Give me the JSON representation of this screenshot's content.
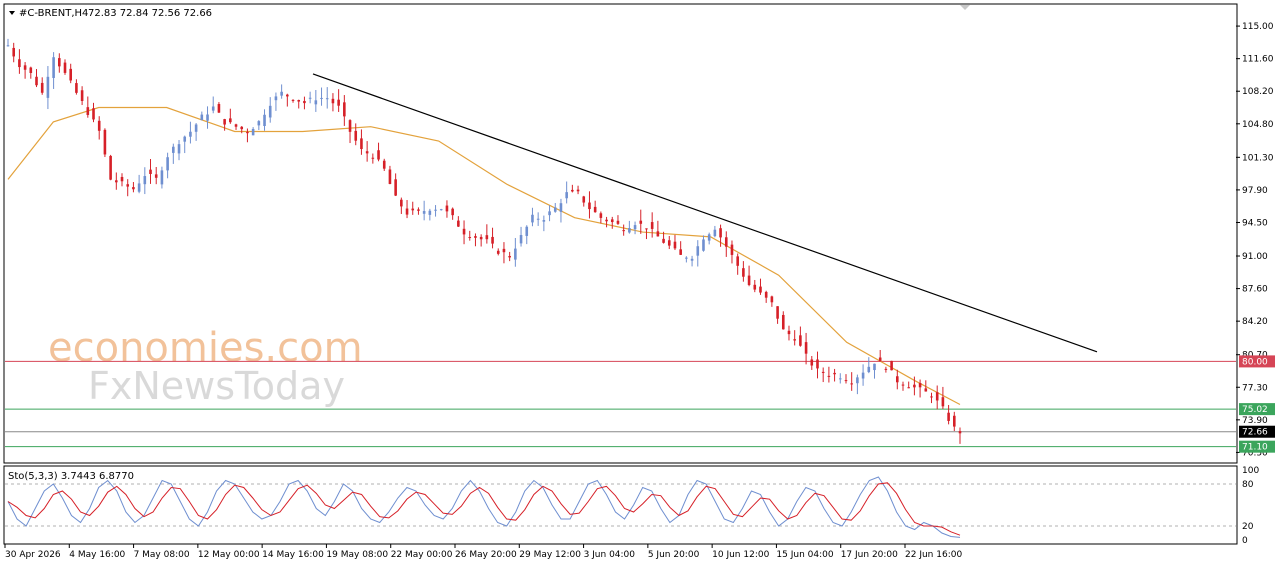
{
  "header": {
    "symbol_label": "#C-BRENT,H4",
    "ohlc_text": "72.83 72.84 72.56 72.66"
  },
  "watermark": {
    "line1": "economies.com",
    "line2": "FxNewsToday"
  },
  "chart_data": {
    "type": "candlestick",
    "symbol": "#C-BRENT",
    "timeframe": "H4",
    "last_bar": {
      "open": 72.83,
      "high": 72.84,
      "low": 72.56,
      "close": 72.66
    },
    "ylim": [
      69.5,
      117.2
    ],
    "y_ticks": [
      "115.00",
      "111.60",
      "108.20",
      "104.80",
      "101.30",
      "97.90",
      "94.50",
      "91.00",
      "87.60",
      "84.20",
      "80.70",
      "77.30",
      "73.90",
      "70.50"
    ],
    "x_ticks": [
      "30 Apr 2026",
      "4 May 16:00",
      "7 May 08:00",
      "12 May 00:00",
      "14 May 16:00",
      "19 May 08:00",
      "22 May 00:00",
      "26 May 20:00",
      "29 May 12:00",
      "3 Jun 04:00",
      "5 Jun 20:00",
      "10 Jun 12:00",
      "15 Jun 04:00",
      "17 Jun 20:00",
      "22 Jun 16:00"
    ],
    "bull_color": "#6f8fd0",
    "bear_color": "#d62028",
    "close_path": [
      [
        0,
        113
      ],
      [
        4,
        111
      ],
      [
        8,
        110
      ],
      [
        12,
        108
      ],
      [
        16,
        112
      ],
      [
        20,
        110
      ],
      [
        24,
        108
      ],
      [
        28,
        106
      ],
      [
        32,
        104
      ],
      [
        36,
        99
      ],
      [
        40,
        98.5
      ],
      [
        44,
        98
      ],
      [
        48,
        99.5
      ],
      [
        52,
        99
      ],
      [
        56,
        101.5
      ],
      [
        60,
        103
      ],
      [
        64,
        104
      ],
      [
        68,
        105.5
      ],
      [
        72,
        106.5
      ],
      [
        76,
        105
      ],
      [
        80,
        104.5
      ],
      [
        84,
        104
      ],
      [
        88,
        105
      ],
      [
        92,
        107
      ],
      [
        96,
        108
      ],
      [
        100,
        107.5
      ],
      [
        104,
        107
      ],
      [
        108,
        107.5
      ],
      [
        112,
        107.5
      ],
      [
        116,
        106.5
      ],
      [
        120,
        104
      ],
      [
        124,
        102
      ],
      [
        128,
        101.5
      ],
      [
        132,
        100
      ],
      [
        136,
        97
      ],
      [
        140,
        95.5
      ],
      [
        144,
        95.5
      ],
      [
        148,
        96
      ],
      [
        152,
        96
      ],
      [
        156,
        95
      ],
      [
        160,
        93.5
      ],
      [
        164,
        93
      ],
      [
        168,
        92.5
      ],
      [
        172,
        91.5
      ],
      [
        176,
        91
      ],
      [
        180,
        93
      ],
      [
        184,
        95
      ],
      [
        188,
        95
      ],
      [
        192,
        96
      ],
      [
        196,
        97.5
      ],
      [
        200,
        97.5
      ],
      [
        204,
        96
      ],
      [
        208,
        95
      ],
      [
        212,
        94.5
      ],
      [
        216,
        94
      ],
      [
        220,
        94.5
      ],
      [
        224,
        94
      ],
      [
        228,
        93
      ],
      [
        232,
        92
      ],
      [
        236,
        91
      ],
      [
        240,
        91
      ],
      [
        244,
        93
      ],
      [
        248,
        94
      ],
      [
        252,
        92
      ],
      [
        256,
        90
      ],
      [
        260,
        88
      ],
      [
        264,
        87
      ],
      [
        268,
        86
      ],
      [
        272,
        83.2
      ],
      [
        276,
        82.5
      ],
      [
        280,
        80.5
      ],
      [
        284,
        79
      ],
      [
        288,
        78.7
      ],
      [
        292,
        78.5
      ],
      [
        296,
        78
      ],
      [
        300,
        79
      ],
      [
        304,
        80
      ],
      [
        308,
        79.5
      ],
      [
        312,
        78
      ],
      [
        316,
        77.5
      ],
      [
        320,
        77
      ],
      [
        324,
        76.5
      ],
      [
        328,
        75
      ],
      [
        332,
        73
      ],
      [
        334,
        72.66
      ]
    ],
    "trendline": {
      "start": [
        0,
        110
      ],
      "end": [
        100,
        81
      ]
    },
    "moving_average": {
      "color": "#e3a23c",
      "points": [
        [
          0,
          99
        ],
        [
          8,
          105
        ],
        [
          16,
          106.5
        ],
        [
          28,
          106.5
        ],
        [
          40,
          104
        ],
        [
          52,
          104
        ],
        [
          64,
          104.5
        ],
        [
          76,
          103
        ],
        [
          88,
          98.5
        ],
        [
          100,
          95
        ],
        [
          112,
          93.5
        ],
        [
          124,
          93
        ],
        [
          136,
          89
        ],
        [
          148,
          82
        ],
        [
          160,
          78
        ],
        [
          168,
          75.5
        ]
      ]
    },
    "horizontal_levels": [
      {
        "value": 80.0,
        "label": "80.00",
        "color": "#d64556"
      },
      {
        "value": 75.02,
        "label": "75.02",
        "color": "#3ba55c"
      },
      {
        "value": 72.66,
        "label": "72.66",
        "color": "#888888"
      },
      {
        "value": 71.1,
        "label": "71.10",
        "color": "#3ba55c"
      }
    ],
    "current_price_label": "72.66",
    "oscillator": {
      "name": "Sto(5,3,3)",
      "values_text": "Sto(5,3,3) 3.7443 6.8770",
      "k": 3.7443,
      "d": 6.877,
      "ylim": [
        0,
        100
      ],
      "levels": [
        20,
        80
      ],
      "y_ticks": [
        "100",
        "80",
        "20",
        "0"
      ],
      "k_color": "#6f8fd0",
      "d_color": "#d62028",
      "k_series": [
        55,
        30,
        20,
        45,
        70,
        80,
        60,
        35,
        25,
        45,
        75,
        85,
        70,
        40,
        25,
        35,
        60,
        85,
        80,
        55,
        30,
        20,
        40,
        70,
        85,
        80,
        60,
        40,
        30,
        35,
        55,
        80,
        85,
        70,
        45,
        35,
        55,
        80,
        70,
        45,
        30,
        25,
        40,
        60,
        75,
        70,
        50,
        35,
        30,
        45,
        70,
        85,
        70,
        45,
        25,
        20,
        40,
        70,
        85,
        75,
        50,
        30,
        30,
        55,
        80,
        85,
        65,
        40,
        30,
        50,
        75,
        70,
        45,
        25,
        35,
        65,
        85,
        80,
        55,
        30,
        25,
        45,
        70,
        65,
        40,
        20,
        30,
        55,
        75,
        70,
        45,
        25,
        20,
        40,
        65,
        85,
        90,
        70,
        40,
        20,
        15,
        25,
        20,
        10,
        5,
        3.7
      ]
    }
  }
}
